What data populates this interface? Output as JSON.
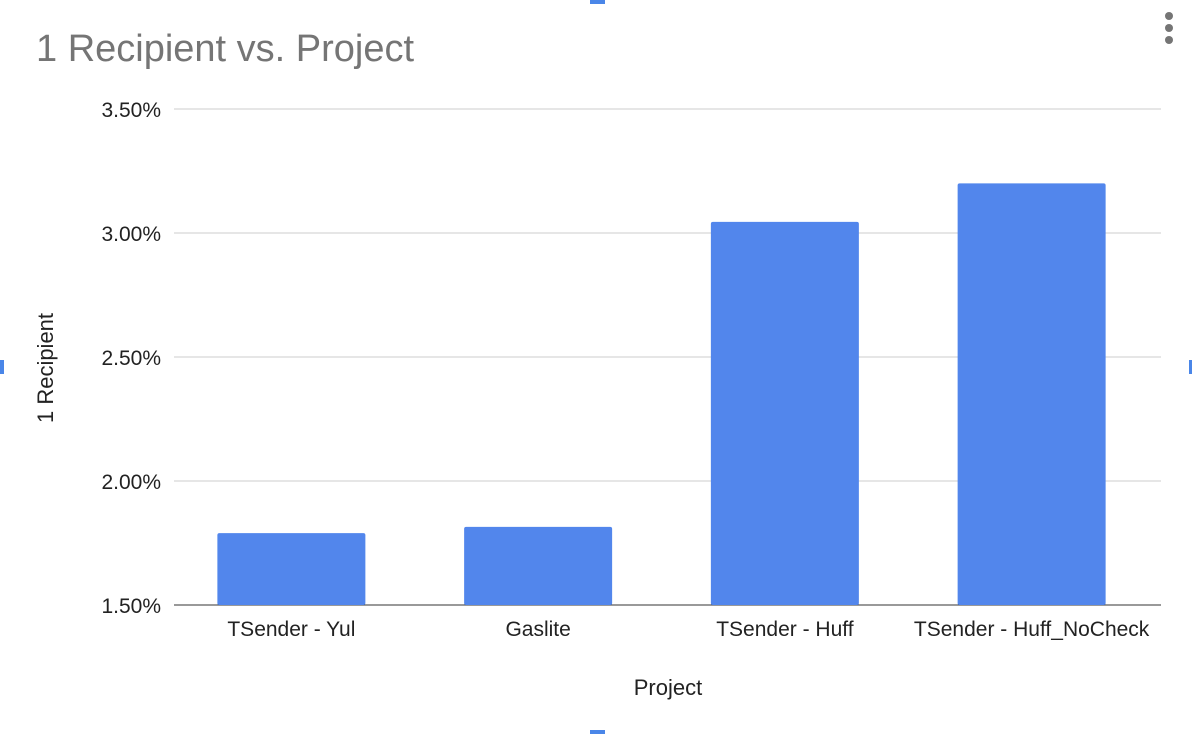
{
  "chart_data": {
    "type": "bar",
    "title": "1 Recipient vs. Project",
    "xlabel": "Project",
    "ylabel": "1 Recipient",
    "categories": [
      "TSender - Yul",
      "Gaslite",
      "TSender - Huff",
      "TSender - Huff_NoCheck"
    ],
    "series": [
      {
        "values": [
          1.79,
          1.815,
          3.045,
          3.2
        ]
      }
    ],
    "ylim": [
      1.5,
      3.5
    ],
    "yticks": [
      "1.50%",
      "2.00%",
      "2.50%",
      "3.00%",
      "3.50%"
    ],
    "ytick_values": [
      1.5,
      2.0,
      2.5,
      3.0,
      3.5
    ],
    "bar_color": "#5286ec",
    "grid": true,
    "legend": "none"
  },
  "ui": {
    "menu_icon": "more-vert-icon",
    "selection_handle_color": "#4a86e8",
    "title_color": "#757575",
    "grid_color": "#cccccc"
  }
}
